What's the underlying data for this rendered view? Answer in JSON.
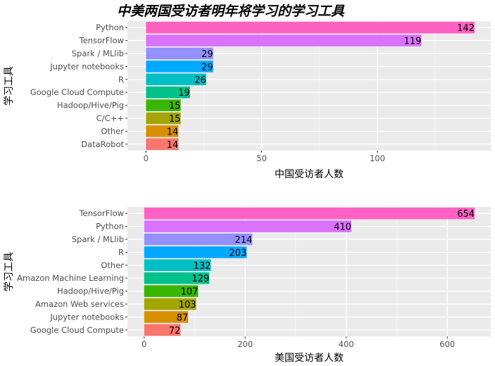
{
  "title": "中美两国受访者明年将学习的学习工具",
  "chart_data": [
    {
      "type": "bar",
      "orientation": "horizontal",
      "categories": [
        "Python",
        "TensorFlow",
        "Spark / MLlib",
        "Jupyter notebooks",
        "R",
        "Google Cloud Compute",
        "Hadoop/Hive/Pig",
        "C/C++",
        "Other",
        "DataRobot"
      ],
      "values": [
        142,
        119,
        29,
        29,
        26,
        19,
        15,
        15,
        14,
        14
      ],
      "colors": [
        "#FF61C3",
        "#DB72FB",
        "#9590FF",
        "#00A9FF",
        "#00BFC4",
        "#00C08B",
        "#39B600",
        "#A3A500",
        "#D89000",
        "#F8766D"
      ],
      "xlabel": "中国受访者人数",
      "ylabel": "学习工具",
      "xlim": [
        -8,
        149
      ],
      "xticks": [
        0,
        50,
        100
      ],
      "grid": true
    },
    {
      "type": "bar",
      "orientation": "horizontal",
      "categories": [
        "TensorFlow",
        "Python",
        "Spark / MLlib",
        "R",
        "Other",
        "Amazon Machine Learning",
        "Hadoop/Hive/Pig",
        "Amazon Web services",
        "Jupyter notebooks",
        "Google Cloud Compute"
      ],
      "values": [
        654,
        410,
        214,
        203,
        132,
        129,
        107,
        103,
        87,
        72
      ],
      "colors": [
        "#FF61C3",
        "#DB72FB",
        "#9590FF",
        "#00A9FF",
        "#00BFC4",
        "#00C08B",
        "#39B600",
        "#A3A500",
        "#D89000",
        "#F8766D"
      ],
      "xlabel": "美国受访者人数",
      "ylabel": "学习工具",
      "xlim": [
        -33,
        686
      ],
      "xticks": [
        0,
        200,
        400,
        600
      ],
      "grid": true
    }
  ]
}
